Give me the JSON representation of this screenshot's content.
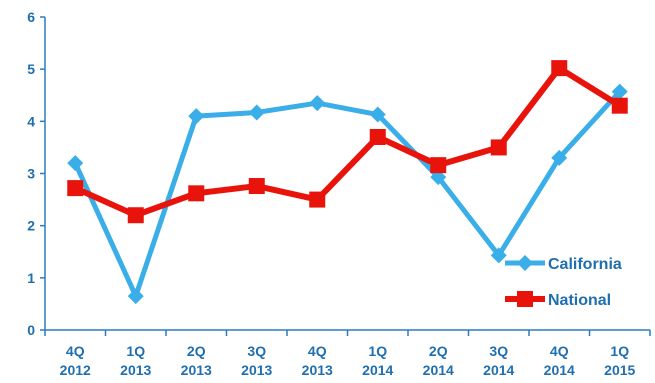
{
  "chart_data": {
    "type": "line",
    "categories": [
      [
        "4Q",
        "2012"
      ],
      [
        "1Q",
        "2013"
      ],
      [
        "2Q",
        "2013"
      ],
      [
        "3Q",
        "2013"
      ],
      [
        "4Q",
        "2013"
      ],
      [
        "1Q",
        "2014"
      ],
      [
        "2Q",
        "2014"
      ],
      [
        "3Q",
        "2014"
      ],
      [
        "4Q",
        "2014"
      ],
      [
        "1Q",
        "2015"
      ]
    ],
    "series": [
      {
        "name": "California",
        "color": "#3aaee8",
        "marker": "diamond",
        "values": [
          3.2,
          0.65,
          4.1,
          4.17,
          4.35,
          4.13,
          2.93,
          1.43,
          3.3,
          4.57
        ]
      },
      {
        "name": "National",
        "color": "#e8140c",
        "marker": "square",
        "values": [
          2.72,
          2.2,
          2.62,
          2.76,
          2.5,
          3.7,
          3.16,
          3.5,
          5.02,
          4.3
        ]
      }
    ],
    "ylim": [
      0,
      6
    ],
    "yticks": [
      "0",
      "1",
      "2",
      "3",
      "4",
      "5",
      "6"
    ],
    "grid": false,
    "legend_position": "bottom-right",
    "axis_color": "#2b7bbf",
    "label_color": "#1f6fb0"
  }
}
